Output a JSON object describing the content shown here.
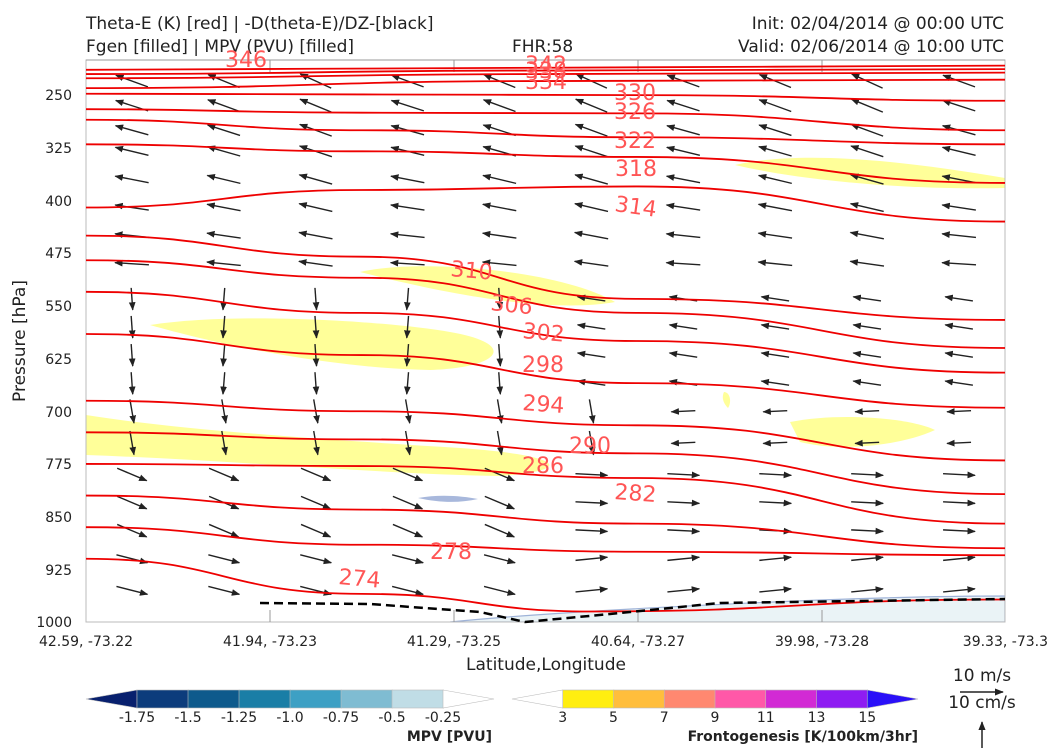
{
  "header": {
    "line1_left": "Theta-E (K) [red] | -D(theta-E)/DZ-[black]",
    "line2_left": "Fgen [filled] | MPV (PVU) [filled]",
    "fhr": "FHR:58",
    "init": "Init: 02/04/2014 @ 00:00 UTC",
    "valid": "Valid: 02/06/2014 @ 10:00 UTC"
  },
  "chart_data": {
    "type": "cross-section",
    "ylabel": "Pressure [hPa]",
    "xlabel": "Latitude,Longitude",
    "y_ticks": [
      "250",
      "325",
      "400",
      "475",
      "550",
      "625",
      "700",
      "775",
      "850",
      "925",
      "1000"
    ],
    "x_ticks": [
      "42.59, -73.22",
      "41.94, -73.23",
      "41.29, -73.25",
      "40.64, -73.27",
      "39.98, -73.28",
      "39.33, -73.3"
    ],
    "ylim": [
      1000,
      200
    ],
    "theta_e_series": [
      {
        "label": "346",
        "values": [
          [
            0,
            214
          ],
          [
            0.5,
            211
          ],
          [
            1,
            208
          ]
        ]
      },
      {
        "label": "342",
        "values": [
          [
            0,
            220
          ],
          [
            0.5,
            215
          ],
          [
            1,
            213
          ]
        ]
      },
      {
        "label": "338",
        "values": [
          [
            0,
            226
          ],
          [
            0.5,
            220
          ],
          [
            1,
            218
          ]
        ]
      },
      {
        "label": "334",
        "values": [
          [
            0,
            240
          ],
          [
            0.5,
            230
          ],
          [
            1,
            228
          ]
        ]
      },
      {
        "label": "330",
        "values": [
          [
            0,
            248
          ],
          [
            0.3,
            249
          ],
          [
            0.6,
            250
          ],
          [
            1,
            258
          ]
        ]
      },
      {
        "label": "326",
        "values": [
          [
            0,
            270
          ],
          [
            0.3,
            275
          ],
          [
            0.6,
            276
          ],
          [
            1,
            300
          ]
        ]
      },
      {
        "label": "322",
        "values": [
          [
            0,
            285
          ],
          [
            0.3,
            300
          ],
          [
            0.6,
            310
          ],
          [
            1,
            320
          ]
        ]
      },
      {
        "label": "318",
        "values": [
          [
            0,
            320
          ],
          [
            0.3,
            330
          ],
          [
            0.6,
            338
          ],
          [
            1,
            375
          ]
        ]
      },
      {
        "label": "314",
        "values": [
          [
            0,
            410
          ],
          [
            0.3,
            385
          ],
          [
            0.6,
            380
          ],
          [
            1,
            430
          ]
        ]
      },
      {
        "label": "310",
        "values": [
          [
            0,
            450
          ],
          [
            0.3,
            480
          ],
          [
            0.6,
            540
          ],
          [
            1,
            570
          ]
        ]
      },
      {
        "label": "306",
        "values": [
          [
            0,
            485
          ],
          [
            0.3,
            510
          ],
          [
            0.6,
            560
          ],
          [
            1,
            610
          ]
        ]
      },
      {
        "label": "302",
        "values": [
          [
            0,
            530
          ],
          [
            0.3,
            560
          ],
          [
            0.6,
            600
          ],
          [
            1,
            645
          ]
        ]
      },
      {
        "label": "298",
        "values": [
          [
            0,
            590
          ],
          [
            0.3,
            620
          ],
          [
            0.6,
            660
          ],
          [
            1,
            695
          ]
        ]
      },
      {
        "label": "294",
        "values": [
          [
            0,
            685
          ],
          [
            0.3,
            700
          ],
          [
            0.6,
            720
          ],
          [
            1,
            770
          ]
        ]
      },
      {
        "label": "290",
        "values": [
          [
            0,
            730
          ],
          [
            0.3,
            740
          ],
          [
            0.6,
            760
          ],
          [
            1,
            818
          ]
        ]
      },
      {
        "label": "286",
        "values": [
          [
            0,
            775
          ],
          [
            0.3,
            778
          ],
          [
            0.6,
            795
          ],
          [
            1,
            860
          ]
        ]
      },
      {
        "label": "282",
        "values": [
          [
            0,
            820
          ],
          [
            0.3,
            840
          ],
          [
            0.6,
            860
          ],
          [
            1,
            895
          ]
        ]
      },
      {
        "label": "278",
        "values": [
          [
            0,
            865
          ],
          [
            0.3,
            890
          ],
          [
            0.6,
            900
          ],
          [
            1,
            905
          ]
        ]
      },
      {
        "label": "274",
        "values": [
          [
            0,
            910
          ],
          [
            0.3,
            960
          ],
          [
            0.55,
            985
          ],
          [
            1,
            968
          ]
        ]
      }
    ],
    "contour_label_positions_note": "",
    "colorbar_mpv": {
      "title": "MPV [PVU]",
      "ticks": [
        "-1.75",
        "-1.5",
        "-1.25",
        "-1.0",
        "-0.75",
        "-0.5",
        "-0.25"
      ],
      "colors": [
        "#08206e",
        "#0c3c7c",
        "#0e5a8c",
        "#1a7ea6",
        "#3da0c4",
        "#7fbcd2",
        "#c0dde6",
        "#ffffff"
      ]
    },
    "colorbar_fgen": {
      "title": "Frontogenesis [K/100km/3hr]",
      "ticks": [
        "3",
        "5",
        "7",
        "9",
        "11",
        "13",
        "15"
      ],
      "colors": [
        "#ffffff",
        "#ffee10",
        "#ffbe3c",
        "#ff8870",
        "#ff58a8",
        "#d22ad4",
        "#8e1cf2",
        "#2a10f8"
      ]
    },
    "vector_scale": {
      "wind": "10 m/s",
      "vertical": "10 cm/s"
    }
  }
}
